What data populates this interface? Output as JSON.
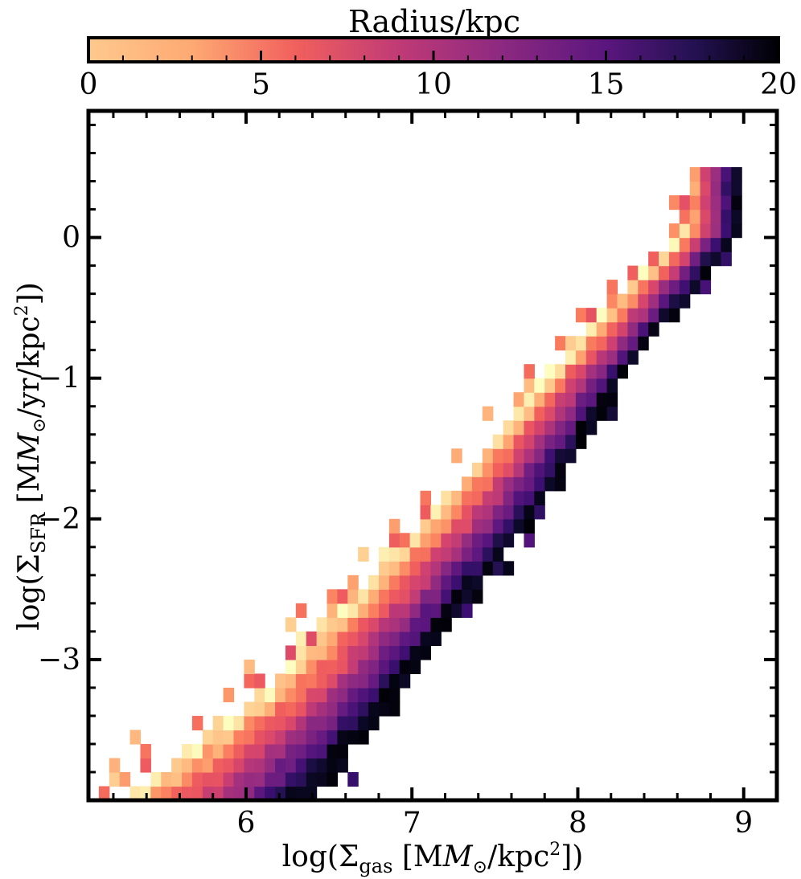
{
  "chart_data": {
    "type": "heatmap",
    "xlabel_main": "log(Σ",
    "xlabel_sub": "gas",
    "xlabel_rest": " [M",
    "xlabel_unit": "/kpc",
    "xlabel_sup": "2",
    "xlabel_end": "])",
    "ylabel_main": "log(Σ",
    "ylabel_sub": "SFR",
    "ylabel_rest": " [M",
    "ylabel_unit": "/yr/kpc",
    "ylabel_sup": "2",
    "ylabel_end": "])",
    "sun_symbol": "⊙",
    "xlim": [
      5.05,
      9.2
    ],
    "ylim": [
      -4.0,
      0.9
    ],
    "xticks": [
      "6",
      "7",
      "8",
      "9"
    ],
    "xtick_values": [
      6,
      7,
      8,
      9
    ],
    "yticks": [
      "0",
      "−1",
      "−2",
      "−3"
    ],
    "ytick_values": [
      0,
      -1,
      -2,
      -3
    ],
    "bin_size": [
      0.0625,
      0.1
    ],
    "colorbar": {
      "title": "Radius/kpc",
      "range": [
        0,
        20
      ],
      "ticks": [
        "0",
        "5",
        "10",
        "15",
        "20"
      ],
      "tick_values": [
        0,
        5,
        10,
        15,
        20
      ],
      "colormap": "magma_r",
      "position": "top"
    },
    "ridge": {
      "description_points": [
        [
          5.8,
          -4.0
        ],
        [
          6.5,
          -3.25
        ],
        [
          7.0,
          -2.55
        ],
        [
          7.5,
          -1.85
        ],
        [
          8.0,
          -1.05
        ],
        [
          8.5,
          -0.35
        ],
        [
          8.8,
          0.05
        ]
      ],
      "band_half_width_x": [
        0.55,
        0.42,
        0.35,
        0.3,
        0.25,
        0.2,
        0.15
      ]
    }
  },
  "colors": {
    "cmap_stops": [
      "#fcfdbf",
      "#fed395",
      "#fea973",
      "#fa7d5e",
      "#f1605d",
      "#e95462",
      "#d3436e",
      "#b73779",
      "#a1307e",
      "#8c2981",
      "#721f81",
      "#5a167e",
      "#3b0f70",
      "#231151",
      "#0c0927",
      "#000004"
    ],
    "axis": "#000000"
  }
}
